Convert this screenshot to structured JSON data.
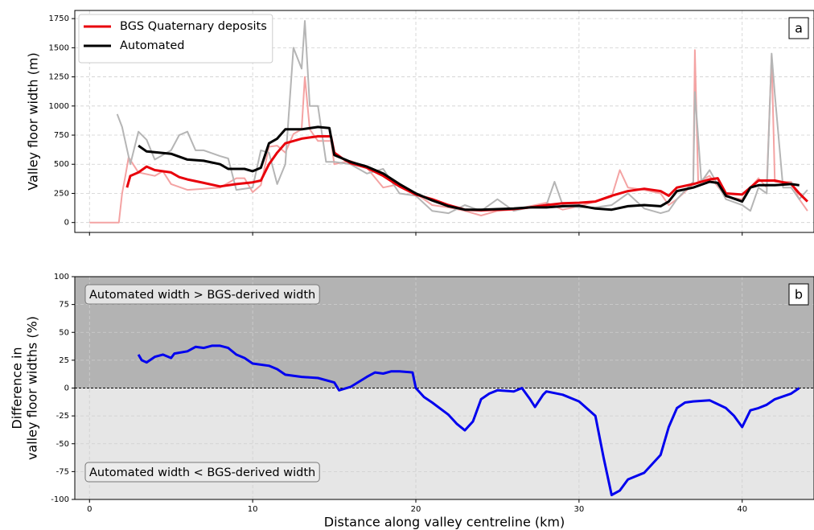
{
  "chart_data": [
    {
      "type": "line",
      "label": "a",
      "ylabel": "Valley floor width (m)",
      "xlim": [
        -0.9,
        44.4
      ],
      "ylim": [
        -85,
        1820
      ],
      "xticks": [
        0,
        10,
        20,
        30,
        40
      ],
      "yticks": [
        0,
        250,
        500,
        750,
        1000,
        1250,
        1500,
        1750
      ],
      "xtick_labels": false,
      "grid": true,
      "legend": "upper left",
      "series": [
        {
          "color": "#f4a3a3",
          "linewidth": 2,
          "x": [
            0,
            1.8,
            2,
            2.2,
            2.4,
            3,
            4,
            4.5,
            5,
            6,
            7,
            8,
            9,
            9.5,
            10,
            10.5,
            11,
            11.5,
            12,
            12.5,
            13,
            13.2,
            13.5,
            14,
            14.8,
            15,
            16,
            17,
            18,
            19,
            20,
            21,
            22,
            23,
            24,
            25,
            26,
            27,
            28,
            29,
            30,
            31,
            32,
            32.5,
            33,
            34,
            35,
            35.5,
            36,
            37,
            37.1,
            37.3,
            38,
            39,
            40,
            40.5,
            41,
            41.5,
            41.8,
            42,
            43,
            43.5,
            44
          ],
          "values": [
            0,
            0,
            250,
            400,
            560,
            430,
            400,
            440,
            330,
            280,
            290,
            300,
            380,
            380,
            260,
            320,
            650,
            660,
            600,
            760,
            800,
            1250,
            800,
            700,
            700,
            500,
            530,
            470,
            300,
            330,
            250,
            150,
            130,
            100,
            60,
            100,
            110,
            140,
            170,
            110,
            140,
            180,
            220,
            450,
            300,
            280,
            250,
            150,
            200,
            330,
            1480,
            350,
            400,
            220,
            200,
            300,
            380,
            300,
            1430,
            350,
            350,
            200,
            100
          ]
        },
        {
          "color": "#b5b5b5",
          "linewidth": 2,
          "x": [
            1.7,
            2,
            2.5,
            3,
            3.5,
            4,
            5,
            5.5,
            6,
            6.5,
            7,
            8,
            8.5,
            9,
            10,
            10.5,
            11,
            11.5,
            12,
            12.5,
            13,
            13.2,
            13.5,
            14,
            14.5,
            15,
            16,
            17,
            18,
            19,
            20,
            21,
            22,
            23,
            24,
            25,
            26,
            27,
            28,
            28.5,
            29,
            30,
            31,
            32,
            33,
            34,
            35,
            35.5,
            36,
            37,
            37.1,
            37.5,
            38,
            39,
            40,
            40.5,
            41,
            41.5,
            41.8,
            42,
            42.5,
            43,
            43.5,
            44
          ],
          "values": [
            930,
            820,
            500,
            780,
            710,
            540,
            620,
            750,
            780,
            620,
            620,
            570,
            550,
            280,
            300,
            620,
            600,
            330,
            500,
            1500,
            1320,
            1730,
            1000,
            1000,
            520,
            520,
            500,
            420,
            460,
            250,
            230,
            100,
            80,
            150,
            100,
            200,
            100,
            130,
            150,
            350,
            150,
            130,
            130,
            150,
            250,
            120,
            80,
            100,
            200,
            350,
            1120,
            350,
            450,
            200,
            150,
            100,
            300,
            250,
            1450,
            1100,
            300,
            300,
            200,
            280
          ]
        },
        {
          "name": "BGS Quaternary deposits",
          "color": "#e8000b",
          "linewidth": 3,
          "x": [
            2.3,
            2.5,
            3,
            3.5,
            4,
            5,
            5.5,
            6,
            7,
            8,
            9,
            10,
            10.5,
            11,
            11.5,
            12,
            13,
            14,
            14.8,
            15,
            15.5,
            16,
            17,
            18,
            19,
            20,
            21,
            22,
            23,
            24,
            25,
            26,
            27,
            28,
            29,
            30,
            31,
            32,
            33,
            34,
            35,
            35.5,
            36,
            37,
            38,
            38.5,
            39,
            40,
            40.5,
            41,
            42,
            43,
            43.5,
            44
          ],
          "values": [
            300,
            400,
            430,
            480,
            450,
            430,
            390,
            370,
            340,
            310,
            330,
            345,
            360,
            500,
            600,
            680,
            720,
            740,
            740,
            600,
            550,
            510,
            470,
            400,
            310,
            240,
            200,
            150,
            110,
            105,
            110,
            115,
            130,
            150,
            165,
            170,
            180,
            230,
            270,
            290,
            270,
            230,
            300,
            330,
            370,
            380,
            250,
            240,
            300,
            360,
            360,
            330,
            250,
            180
          ]
        },
        {
          "name": "Automated",
          "color": "#000000",
          "linewidth": 3,
          "x": [
            3,
            3.5,
            5,
            6,
            7,
            8,
            8.5,
            9.5,
            10,
            10.5,
            11,
            11.5,
            12,
            13,
            14,
            14.7,
            15,
            15.5,
            16,
            17,
            18,
            19,
            20,
            21,
            22,
            23,
            24,
            25,
            26,
            27,
            28,
            29,
            30,
            31,
            32,
            33,
            34,
            35,
            35.5,
            36,
            37,
            38,
            38.5,
            39,
            40,
            40.5,
            41,
            42,
            43,
            43.5
          ],
          "values": [
            660,
            610,
            590,
            540,
            530,
            500,
            460,
            460,
            440,
            470,
            680,
            720,
            800,
            800,
            820,
            810,
            580,
            550,
            520,
            480,
            420,
            330,
            250,
            190,
            140,
            110,
            110,
            115,
            120,
            130,
            130,
            140,
            145,
            120,
            110,
            140,
            150,
            140,
            180,
            270,
            300,
            350,
            340,
            230,
            180,
            300,
            320,
            320,
            330,
            320
          ]
        }
      ]
    },
    {
      "type": "line",
      "label": "b",
      "ylabel": [
        "Difference in",
        "valley floor widths (%)"
      ],
      "xlabel": "Distance along valley centreline (km)",
      "xlim": [
        -0.9,
        44.4
      ],
      "ylim": [
        -100,
        100
      ],
      "xticks": [
        0,
        10,
        20,
        30,
        40
      ],
      "yticks": [
        -100,
        -75,
        -50,
        -25,
        0,
        25,
        50,
        75,
        100
      ],
      "xtick_labels": true,
      "grid": true,
      "hline": 0,
      "fill_above": "#b3b3b3",
      "fill_below": "#e6e6e6",
      "annotations": [
        "Automated width > BGS-derived width",
        "Automated width < BGS-derived width"
      ],
      "series": [
        {
          "color": "#0000ee",
          "linewidth": 3,
          "x": [
            3,
            3.2,
            3.5,
            4,
            4.5,
            5,
            5.2,
            6,
            6.5,
            7,
            7.5,
            8,
            8.5,
            9,
            9.5,
            10,
            11,
            11.5,
            12,
            13,
            14,
            15,
            15.3,
            16,
            17,
            17.5,
            18,
            18.5,
            19,
            19.8,
            20,
            20.5,
            21,
            22,
            22.5,
            23,
            23.5,
            24,
            24.5,
            25,
            26,
            26.5,
            27,
            27.3,
            27.8,
            28,
            29,
            30,
            31,
            31.5,
            32,
            32.5,
            33,
            34,
            35,
            35.5,
            36,
            36.5,
            37,
            38,
            39,
            39.5,
            40,
            40.5,
            41,
            41.5,
            42,
            43,
            43.5
          ],
          "values": [
            30,
            25,
            23,
            28,
            30,
            27,
            31,
            33,
            37,
            36,
            38,
            38,
            36,
            30,
            27,
            22,
            20,
            17,
            12,
            10,
            9,
            5,
            -2,
            1,
            10,
            14,
            13,
            15,
            15,
            14,
            0,
            -8,
            -13,
            -24,
            -32,
            -38,
            -30,
            -10,
            -5,
            -2,
            -3,
            0,
            -10,
            -17,
            -6,
            -3,
            -6,
            -12,
            -25,
            -62,
            -96,
            -92,
            -82,
            -76,
            -60,
            -35,
            -18,
            -13,
            -12,
            -11,
            -18,
            -25,
            -35,
            -20,
            -18,
            -15,
            -10,
            -5,
            0
          ]
        }
      ]
    }
  ]
}
